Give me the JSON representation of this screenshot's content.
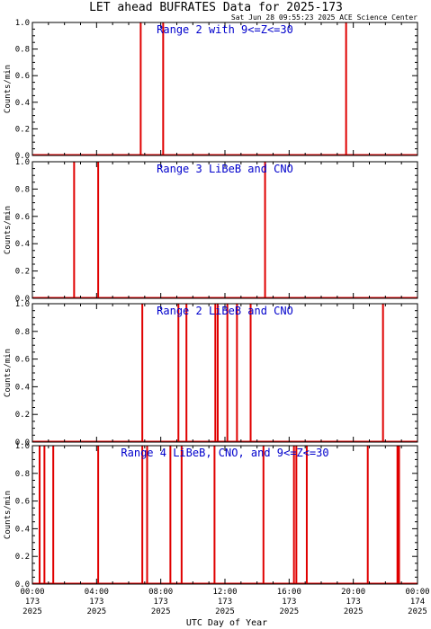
{
  "title": "LET ahead BUFRATES Data for 2025-173",
  "timestamp": "Sat Jun 28 09:55:23 2025 ACE Science Center",
  "xlabel": "UTC Day of Year",
  "colors": {
    "trace": "#e00000",
    "panel_title": "#0000cc",
    "axes": "#000000"
  },
  "chart_data": [
    {
      "type": "bar",
      "title": "Range 2 with 9<=Z<=30",
      "ylabel": "Counts/min",
      "xlim": [
        0,
        24
      ],
      "ylim": [
        0,
        1.0
      ],
      "yticks": [
        "0.0",
        "0.2",
        "0.4",
        "0.6",
        "0.8",
        "1.0"
      ],
      "spikes_hours": [
        6.75,
        8.15,
        19.55
      ]
    },
    {
      "type": "bar",
      "title": "Range 3 LiBeB and CNO",
      "ylabel": "Counts/min",
      "xlim": [
        0,
        24
      ],
      "ylim": [
        0,
        1.0
      ],
      "yticks": [
        "0.0",
        "0.2",
        "0.4",
        "0.6",
        "0.8",
        "1.0"
      ],
      "spikes_hours": [
        2.6,
        4.1,
        14.5
      ]
    },
    {
      "type": "bar",
      "title": "Range 2 LiBeB and CNO",
      "ylabel": "Counts/min",
      "xlim": [
        0,
        24
      ],
      "ylim": [
        0,
        1.0
      ],
      "yticks": [
        "0.0",
        "0.2",
        "0.4",
        "0.6",
        "0.8",
        "1.0"
      ],
      "spikes_hours": [
        6.85,
        9.1,
        9.6,
        11.4,
        11.55,
        12.15,
        12.75,
        13.6,
        21.85
      ]
    },
    {
      "type": "bar",
      "title": "Range 4 LiBeB, CNO, and 9<=Z<=30",
      "ylabel": "Counts/min",
      "xlim": [
        0,
        24
      ],
      "ylim": [
        0,
        1.0
      ],
      "yticks": [
        "0.0",
        "0.2",
        "0.4",
        "0.6",
        "0.8",
        "1.0"
      ],
      "spikes_hours": [
        0.45,
        0.75,
        1.3,
        4.1,
        6.85,
        7.15,
        8.6,
        9.3,
        11.35,
        14.4,
        16.3,
        16.45,
        17.1,
        20.9,
        22.75,
        22.85
      ]
    }
  ],
  "xticks": [
    {
      "h": 0,
      "lines": [
        "00:00",
        "173",
        "2025"
      ]
    },
    {
      "h": 4,
      "lines": [
        "04:00",
        "173",
        "2025"
      ]
    },
    {
      "h": 8,
      "lines": [
        "08:00",
        "173",
        "2025"
      ]
    },
    {
      "h": 12,
      "lines": [
        "12:00",
        "173",
        "2025"
      ]
    },
    {
      "h": 16,
      "lines": [
        "16:00",
        "173",
        "2025"
      ]
    },
    {
      "h": 20,
      "lines": [
        "20:00",
        "173",
        "2025"
      ]
    },
    {
      "h": 24,
      "lines": [
        "00:00",
        "174",
        "2025"
      ]
    }
  ]
}
